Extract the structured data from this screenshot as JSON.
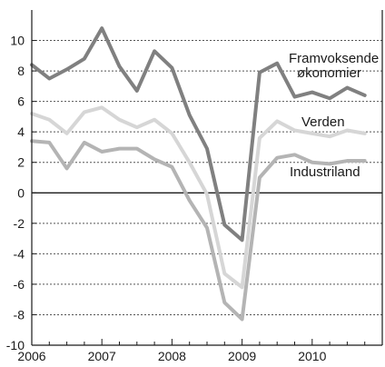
{
  "chart_data": {
    "type": "line",
    "title": "",
    "xlabel": "",
    "ylabel": "",
    "xlim": [
      2006,
      2011
    ],
    "ylim": [
      -10,
      12
    ],
    "yticks": [
      -10,
      -8,
      -6,
      -4,
      -2,
      0,
      2,
      4,
      6,
      8,
      10
    ],
    "ytick_labels": [
      "-10",
      "-8",
      "-6",
      "-4",
      "-2",
      "0",
      "2",
      "4",
      "6",
      "8",
      "10"
    ],
    "xticks": [
      2006,
      2007,
      2008,
      2009,
      2010
    ],
    "xtick_labels": [
      "2006",
      "2007",
      "2008",
      "2009",
      "2010"
    ],
    "grid": "horizontal dashed",
    "x": [
      2006.0,
      2006.25,
      2006.5,
      2006.75,
      2007.0,
      2007.25,
      2007.5,
      2007.75,
      2008.0,
      2008.25,
      2008.5,
      2008.75,
      2009.0,
      2009.25,
      2009.5,
      2009.75,
      2010.0,
      2010.25,
      2010.5,
      2010.75
    ],
    "series": [
      {
        "name": "Framvoksende økonomier",
        "color": "#808080",
        "values": [
          8.4,
          7.5,
          8.1,
          8.8,
          10.8,
          8.3,
          6.7,
          9.3,
          8.2,
          5.1,
          2.9,
          -2.1,
          -3.1,
          7.9,
          8.5,
          6.3,
          6.6,
          6.2,
          6.9,
          6.4
        ]
      },
      {
        "name": "Verden",
        "color": "#d6d6d6",
        "values": [
          5.2,
          4.8,
          3.9,
          5.3,
          5.6,
          4.8,
          4.3,
          4.8,
          3.9,
          2.0,
          -0.1,
          -5.3,
          -6.2,
          3.6,
          4.7,
          4.1,
          3.9,
          3.7,
          4.1,
          3.9
        ]
      },
      {
        "name": "Industriland",
        "color": "#b4b4b4",
        "values": [
          3.4,
          3.3,
          1.6,
          3.3,
          2.7,
          2.9,
          2.9,
          2.2,
          1.7,
          -0.5,
          -2.3,
          -7.2,
          -8.3,
          1.0,
          2.3,
          2.5,
          2.0,
          1.9,
          2.1,
          2.1
        ]
      }
    ],
    "labels": {
      "emerging_line1": "Framvoksende",
      "emerging_line2": "økonomier",
      "world": "Verden",
      "industrial": "Industriland"
    }
  }
}
